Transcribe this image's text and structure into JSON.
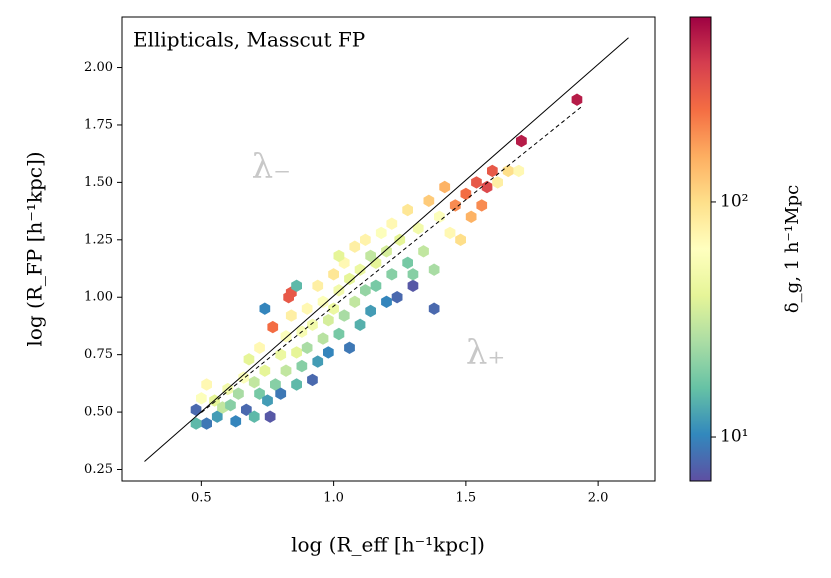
{
  "chart_data": {
    "type": "hexbin",
    "title": "Ellipticals, Masscut FP",
    "xlabel": "log (R_eff [h⁻¹kpc])",
    "ylabel": "log (R_FP [h⁻¹kpc])",
    "colorbar_label": "δ_g, 1 h⁻¹Mpc",
    "colormap": "Spectral_r",
    "color_scale": "log",
    "xlim": [
      0.2,
      2.215
    ],
    "ylim": [
      0.2,
      2.22
    ],
    "clim": [
      6.5,
      612
    ],
    "xticks": [
      0.5,
      {
        "value": 1,
        "label": "1.0"
      },
      1.5,
      {
        "value": 2,
        "label": "2.0"
      }
    ],
    "yticks": [
      0.25,
      {
        "value": 0.5,
        "label": "0.50"
      },
      0.75,
      {
        "value": 1,
        "label": "1.00"
      },
      1.25,
      {
        "value": 1.5,
        "label": "1.50"
      },
      1.75,
      {
        "value": 2,
        "label": "2.00"
      }
    ],
    "cticks": [
      {
        "value": 10,
        "label": "10¹"
      },
      {
        "value": 100,
        "label": "10²"
      }
    ],
    "annotations": [
      {
        "text": "λ₋",
        "x": 0.69,
        "y": 1.56
      },
      {
        "text": "λ₊",
        "x": 1.5,
        "y": 0.75
      }
    ],
    "lines": [
      {
        "style": "solid",
        "color": "#000000",
        "x": [
          0.285,
          2.115
        ],
        "y": [
          0.285,
          2.13
        ]
      },
      {
        "style": "dashed",
        "color": "#000000",
        "x": [
          0.5,
          1.938
        ],
        "y": [
          0.498,
          1.83
        ]
      }
    ],
    "x": [
      0.48,
      0.52,
      0.48,
      0.5,
      0.52,
      0.55,
      0.56,
      0.58,
      0.6,
      0.61,
      0.63,
      0.64,
      0.66,
      0.67,
      0.68,
      0.7,
      0.7,
      0.72,
      0.72,
      0.74,
      0.75,
      0.76,
      0.77,
      0.78,
      0.8,
      0.8,
      0.82,
      0.82,
      0.84,
      0.84,
      0.86,
      0.86,
      0.88,
      0.88,
      0.9,
      0.9,
      0.92,
      0.92,
      0.94,
      0.94,
      0.96,
      0.96,
      0.98,
      0.98,
      1.0,
      1.0,
      1.02,
      1.02,
      1.04,
      1.04,
      1.06,
      1.06,
      1.08,
      1.08,
      1.1,
      1.1,
      1.12,
      1.12,
      1.14,
      1.16,
      1.16,
      1.18,
      1.2,
      1.2,
      1.22,
      1.22,
      1.24,
      1.25,
      1.28,
      1.28,
      1.3,
      1.32,
      1.34,
      1.36,
      1.38,
      1.4,
      1.42,
      1.44,
      1.46,
      1.48,
      1.5,
      1.52,
      1.54,
      1.56,
      1.58,
      1.6,
      1.62,
      1.66,
      1.7,
      1.71,
      1.92,
      1.38,
      1.3,
      0.83,
      0.74,
      0.86,
      1.14,
      1.02
    ],
    "y": [
      0.51,
      0.45,
      0.45,
      0.56,
      0.62,
      0.55,
      0.48,
      0.52,
      0.6,
      0.53,
      0.46,
      0.58,
      0.65,
      0.51,
      0.73,
      0.48,
      0.63,
      0.58,
      0.78,
      0.68,
      0.55,
      0.48,
      0.87,
      0.62,
      0.75,
      0.58,
      0.83,
      0.68,
      1.02,
      0.92,
      0.76,
      0.62,
      0.85,
      0.7,
      0.95,
      0.78,
      0.64,
      0.88,
      1.05,
      0.72,
      0.82,
      0.98,
      0.9,
      0.76,
      1.1,
      0.95,
      0.84,
      1.03,
      0.92,
      1.15,
      0.78,
      1.08,
      0.98,
      1.22,
      0.88,
      1.12,
      1.03,
      1.25,
      0.94,
      1.15,
      1.05,
      1.28,
      0.98,
      1.2,
      1.1,
      1.32,
      1.0,
      1.25,
      1.15,
      1.38,
      1.05,
      1.3,
      1.2,
      1.42,
      1.12,
      1.35,
      1.48,
      1.28,
      1.4,
      1.25,
      1.45,
      1.35,
      1.5,
      1.4,
      1.48,
      1.55,
      1.5,
      1.55,
      1.55,
      1.68,
      1.86,
      0.95,
      1.1,
      1.0,
      0.95,
      1.05,
      1.18,
      1.18
    ],
    "values": [
      8,
      9,
      15,
      60,
      70,
      40,
      12,
      30,
      50,
      20,
      10,
      25,
      60,
      8,
      40,
      15,
      30,
      18,
      70,
      40,
      12,
      7,
      250,
      20,
      45,
      9,
      60,
      30,
      300,
      80,
      40,
      15,
      55,
      20,
      70,
      25,
      8,
      50,
      80,
      12,
      28,
      60,
      35,
      10,
      90,
      45,
      18,
      50,
      25,
      70,
      9,
      40,
      30,
      80,
      14,
      45,
      22,
      75,
      12,
      40,
      18,
      60,
      10,
      35,
      20,
      70,
      8,
      40,
      18,
      90,
      7,
      50,
      30,
      120,
      25,
      60,
      150,
      70,
      200,
      100,
      250,
      150,
      300,
      200,
      350,
      300,
      80,
      100,
      70,
      500,
      500,
      8,
      20,
      300,
      10,
      15,
      30,
      40
    ]
  }
}
